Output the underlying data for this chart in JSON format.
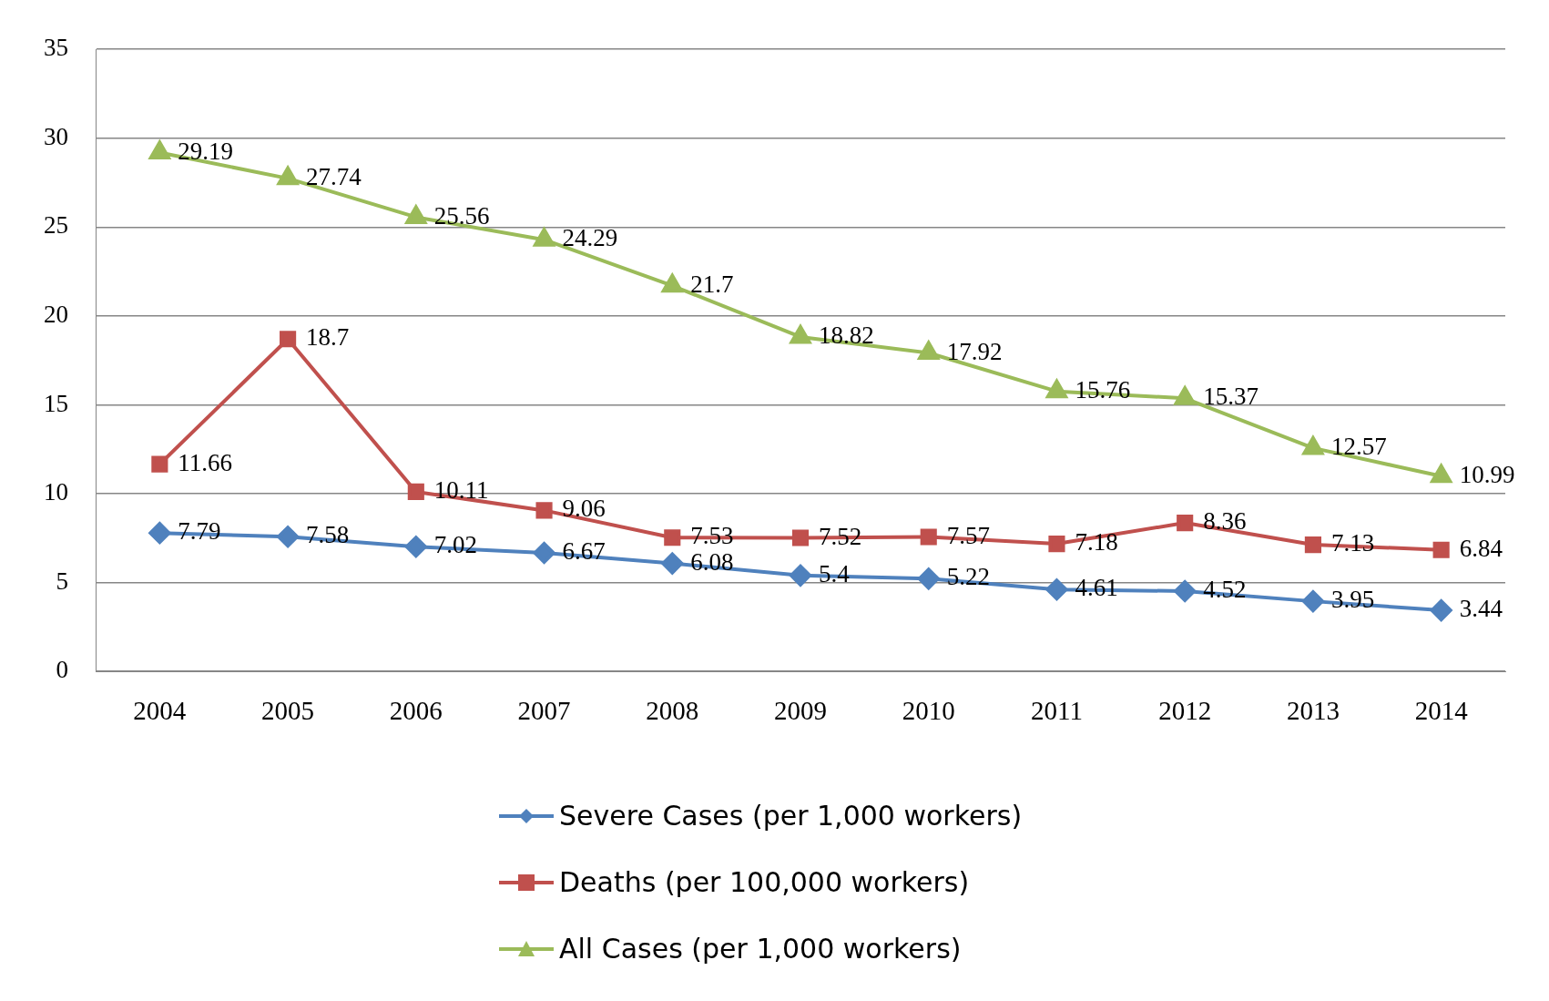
{
  "chart_data": {
    "type": "line",
    "categories": [
      "2004",
      "2005",
      "2006",
      "2007",
      "2008",
      "2009",
      "2010",
      "2011",
      "2012",
      "2013",
      "2014"
    ],
    "series": [
      {
        "name": "Severe Cases (per 1,000 workers)",
        "color": "#4f81bd",
        "marker": "diamond",
        "values": [
          7.79,
          7.58,
          7.02,
          6.67,
          6.08,
          5.4,
          5.22,
          4.61,
          4.52,
          3.95,
          3.44
        ]
      },
      {
        "name": "Deaths (per 100,000 workers)",
        "color": "#c0504d",
        "marker": "square",
        "values": [
          11.66,
          18.7,
          10.11,
          9.06,
          7.53,
          7.52,
          7.57,
          7.18,
          8.36,
          7.13,
          6.84
        ]
      },
      {
        "name": "All Cases (per 1,000 workers)",
        "color": "#9bbb59",
        "marker": "triangle",
        "values": [
          29.19,
          27.74,
          25.56,
          24.29,
          21.7,
          18.82,
          17.92,
          15.76,
          15.37,
          12.57,
          10.99
        ]
      }
    ],
    "ylim": [
      0,
      35
    ],
    "yticks": [
      0,
      5,
      10,
      15,
      20,
      25,
      30,
      35
    ],
    "grid": "y",
    "legend": "bottom",
    "data_labels": true,
    "line_style": "solid"
  }
}
